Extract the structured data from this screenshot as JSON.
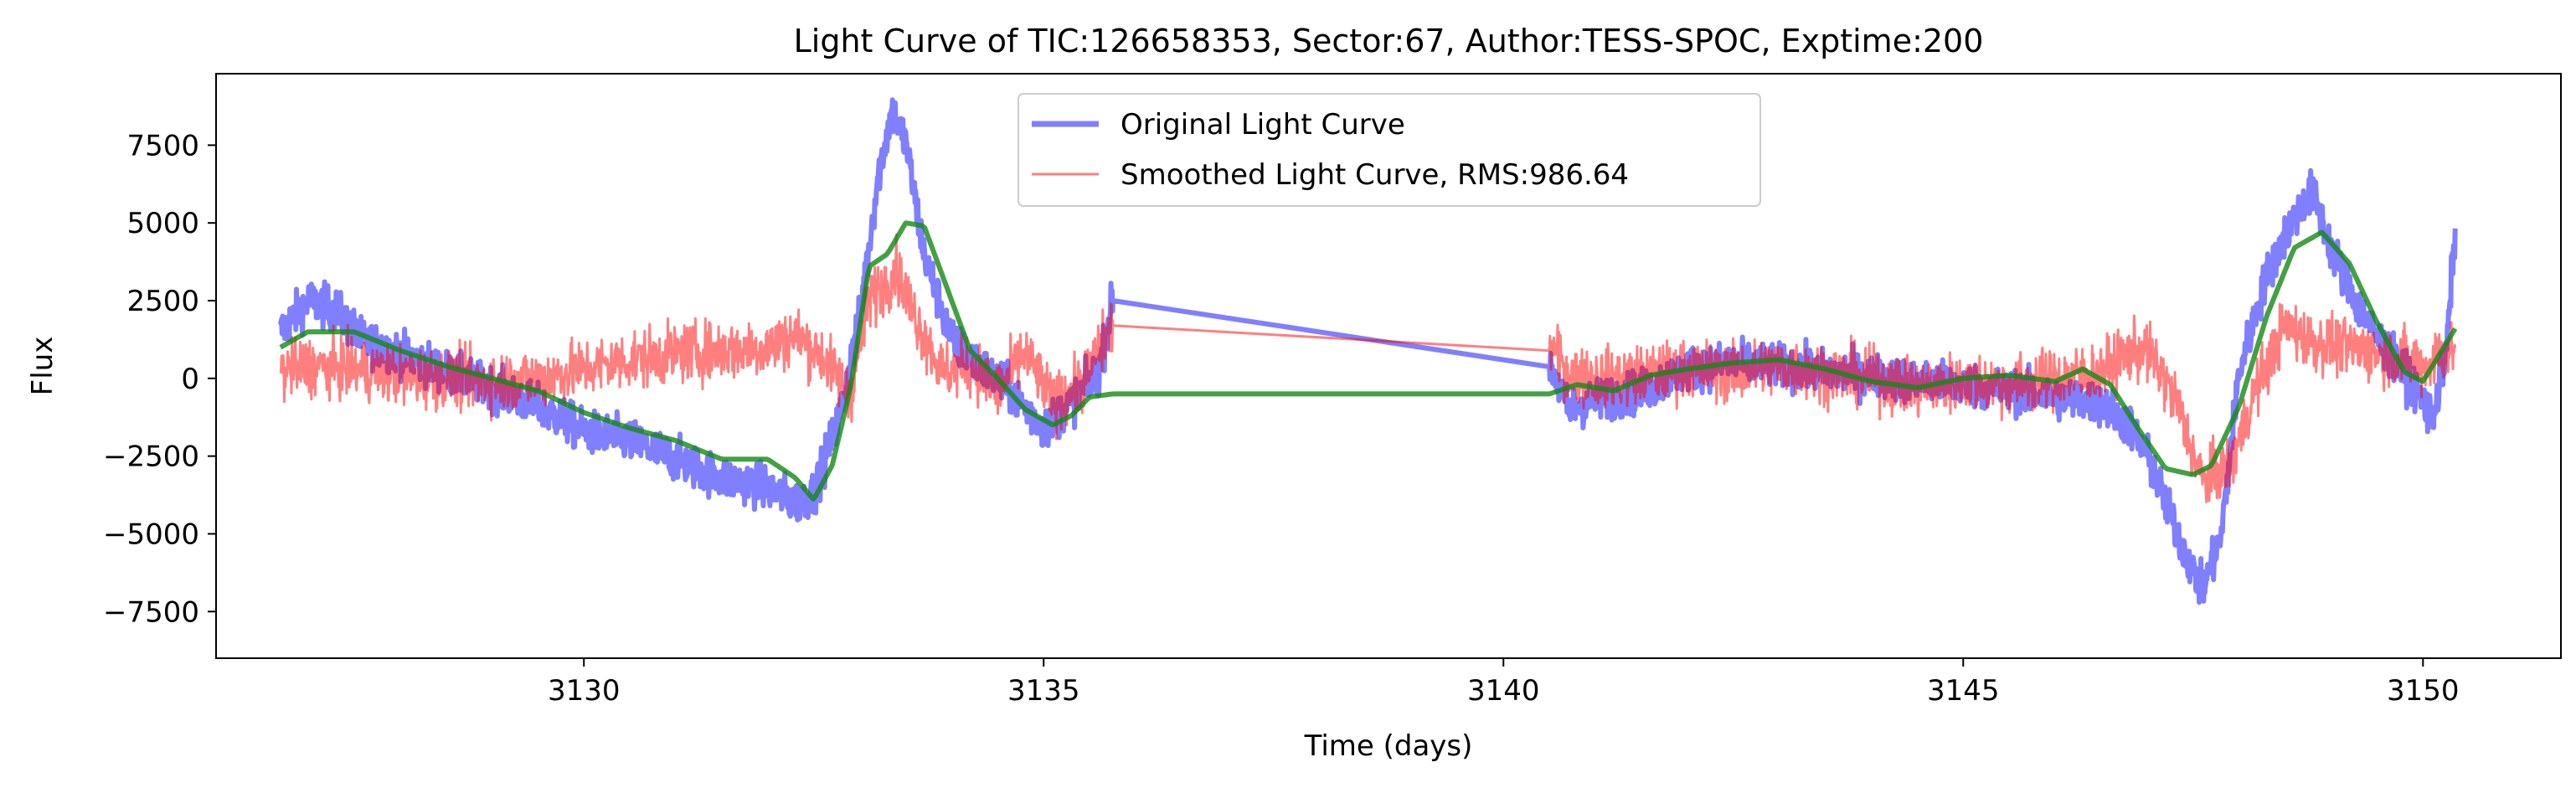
{
  "chart_data": {
    "type": "line",
    "title": "Light Curve of TIC:126658353, Sector:67, Author:TESS-SPOC, Exptime:200",
    "xlabel": "Time (days)",
    "ylabel": "Flux",
    "xlim": [
      3126.0,
      3151.5
    ],
    "ylim": [
      -9000,
      9800
    ],
    "xticks": [
      3130,
      3135,
      3140,
      3145,
      3150
    ],
    "yticks": [
      -7500,
      -5000,
      -2500,
      0,
      2500,
      5000,
      7500
    ],
    "xtick_labels": [
      "3130",
      "3135",
      "3140",
      "3145",
      "3150"
    ],
    "ytick_labels": [
      "−7500",
      "−5000",
      "−2500",
      "0",
      "2500",
      "5000",
      "7500"
    ],
    "grid": false,
    "legend_position": "top-center",
    "series": [
      {
        "name": "Original Light Curve",
        "color": "#0000ff",
        "opacity": 0.5,
        "noise": 1100,
        "x": [
          3126.7,
          3127.0,
          3127.3,
          3127.6,
          3128.0,
          3128.5,
          3129.0,
          3129.5,
          3130.0,
          3130.5,
          3131.0,
          3131.5,
          3132.0,
          3132.3,
          3132.5,
          3132.8,
          3133.0,
          3133.2,
          3133.35,
          3133.5,
          3133.7,
          3134.0,
          3134.3,
          3134.6,
          3135.0,
          3135.3,
          3135.6,
          3135.75,
          3140.5,
          3140.7,
          3141.0,
          3141.5,
          3142.0,
          3142.5,
          3143.0,
          3143.5,
          3144.0,
          3144.5,
          3145.0,
          3145.5,
          3146.0,
          3146.5,
          3146.8,
          3147.0,
          3147.2,
          3147.4,
          3147.6,
          3147.8,
          3148.0,
          3148.3,
          3148.6,
          3148.8,
          3149.0,
          3149.3,
          3149.6,
          3149.9,
          3150.1,
          3150.25,
          3150.35
        ],
        "y": [
          1500,
          2500,
          2200,
          1200,
          800,
          200,
          -300,
          -900,
          -1700,
          -2000,
          -2600,
          -3200,
          -3500,
          -4000,
          -3700,
          -1000,
          2000,
          6500,
          8600,
          7600,
          4000,
          1200,
          400,
          -300,
          -1600,
          -800,
          200,
          2500,
          500,
          -1000,
          -700,
          -400,
          300,
          500,
          400,
          200,
          100,
          -100,
          -200,
          -400,
          -600,
          -800,
          -1500,
          -2500,
          -4000,
          -5500,
          -6800,
          -5200,
          200,
          3300,
          5200,
          6000,
          4200,
          2300,
          900,
          -200,
          -1300,
          700,
          4800
        ]
      },
      {
        "name": "Smoothed Light Curve, RMS:986.64",
        "color": "#ff0000",
        "opacity": 0.5,
        "noise": 1500,
        "x": [
          3126.7,
          3127.0,
          3127.5,
          3128.0,
          3128.5,
          3129.0,
          3129.5,
          3130.0,
          3130.5,
          3131.0,
          3131.5,
          3132.0,
          3132.3,
          3132.6,
          3132.9,
          3133.1,
          3133.4,
          3133.6,
          3133.9,
          3134.2,
          3134.5,
          3134.8,
          3135.1,
          3135.4,
          3135.75,
          3140.5,
          3140.7,
          3141.0,
          3141.5,
          3142.0,
          3142.5,
          3143.0,
          3143.5,
          3144.0,
          3144.5,
          3145.0,
          3145.5,
          3146.0,
          3146.5,
          3146.8,
          3147.0,
          3147.3,
          3147.6,
          3147.9,
          3148.2,
          3148.5,
          3148.8,
          3149.1,
          3149.4,
          3149.7,
          3150.0,
          3150.35
        ],
        "y": [
          200,
          400,
          300,
          100,
          0,
          -100,
          0,
          300,
          600,
          800,
          900,
          1000,
          1400,
          700,
          -500,
          2500,
          3500,
          2000,
          200,
          400,
          -400,
          800,
          -800,
          -200,
          1700,
          1100,
          200,
          0,
          100,
          300,
          200,
          400,
          200,
          0,
          -300,
          -100,
          -200,
          0,
          200,
          800,
          900,
          -600,
          -3300,
          -2800,
          -200,
          1700,
          1200,
          1000,
          900,
          700,
          400,
          1000
        ]
      },
      {
        "name": "",
        "color": "#138a13",
        "opacity": 0.8,
        "noise": 0,
        "x": [
          3126.7,
          3127.0,
          3127.5,
          3128.0,
          3128.5,
          3129.0,
          3129.5,
          3130.0,
          3130.5,
          3131.0,
          3131.5,
          3132.0,
          3132.3,
          3132.5,
          3132.7,
          3132.9,
          3133.1,
          3133.3,
          3133.5,
          3133.7,
          3133.9,
          3134.2,
          3134.5,
          3134.8,
          3135.1,
          3135.3,
          3135.5,
          3135.75,
          3140.5,
          3140.8,
          3141.2,
          3141.6,
          3142.0,
          3142.5,
          3143.0,
          3143.5,
          3144.0,
          3144.5,
          3145.0,
          3145.5,
          3146.0,
          3146.3,
          3146.6,
          3146.9,
          3147.2,
          3147.5,
          3147.7,
          3148.0,
          3148.3,
          3148.6,
          3148.9,
          3149.2,
          3149.5,
          3149.8,
          3150.0,
          3150.35
        ],
        "y": [
          1000,
          1500,
          1500,
          900,
          400,
          0,
          -400,
          -1100,
          -1600,
          -2000,
          -2600,
          -2600,
          -3200,
          -3900,
          -2800,
          -300,
          3600,
          4000,
          5000,
          4900,
          3300,
          900,
          0,
          -1000,
          -1500,
          -1200,
          -600,
          -500,
          -500,
          -200,
          -400,
          100,
          300,
          500,
          600,
          300,
          -100,
          -300,
          0,
          100,
          -100,
          300,
          -200,
          -1600,
          -2900,
          -3100,
          -2800,
          -900,
          2000,
          4200,
          4700,
          3700,
          1800,
          200,
          -100,
          1600
        ]
      }
    ]
  }
}
